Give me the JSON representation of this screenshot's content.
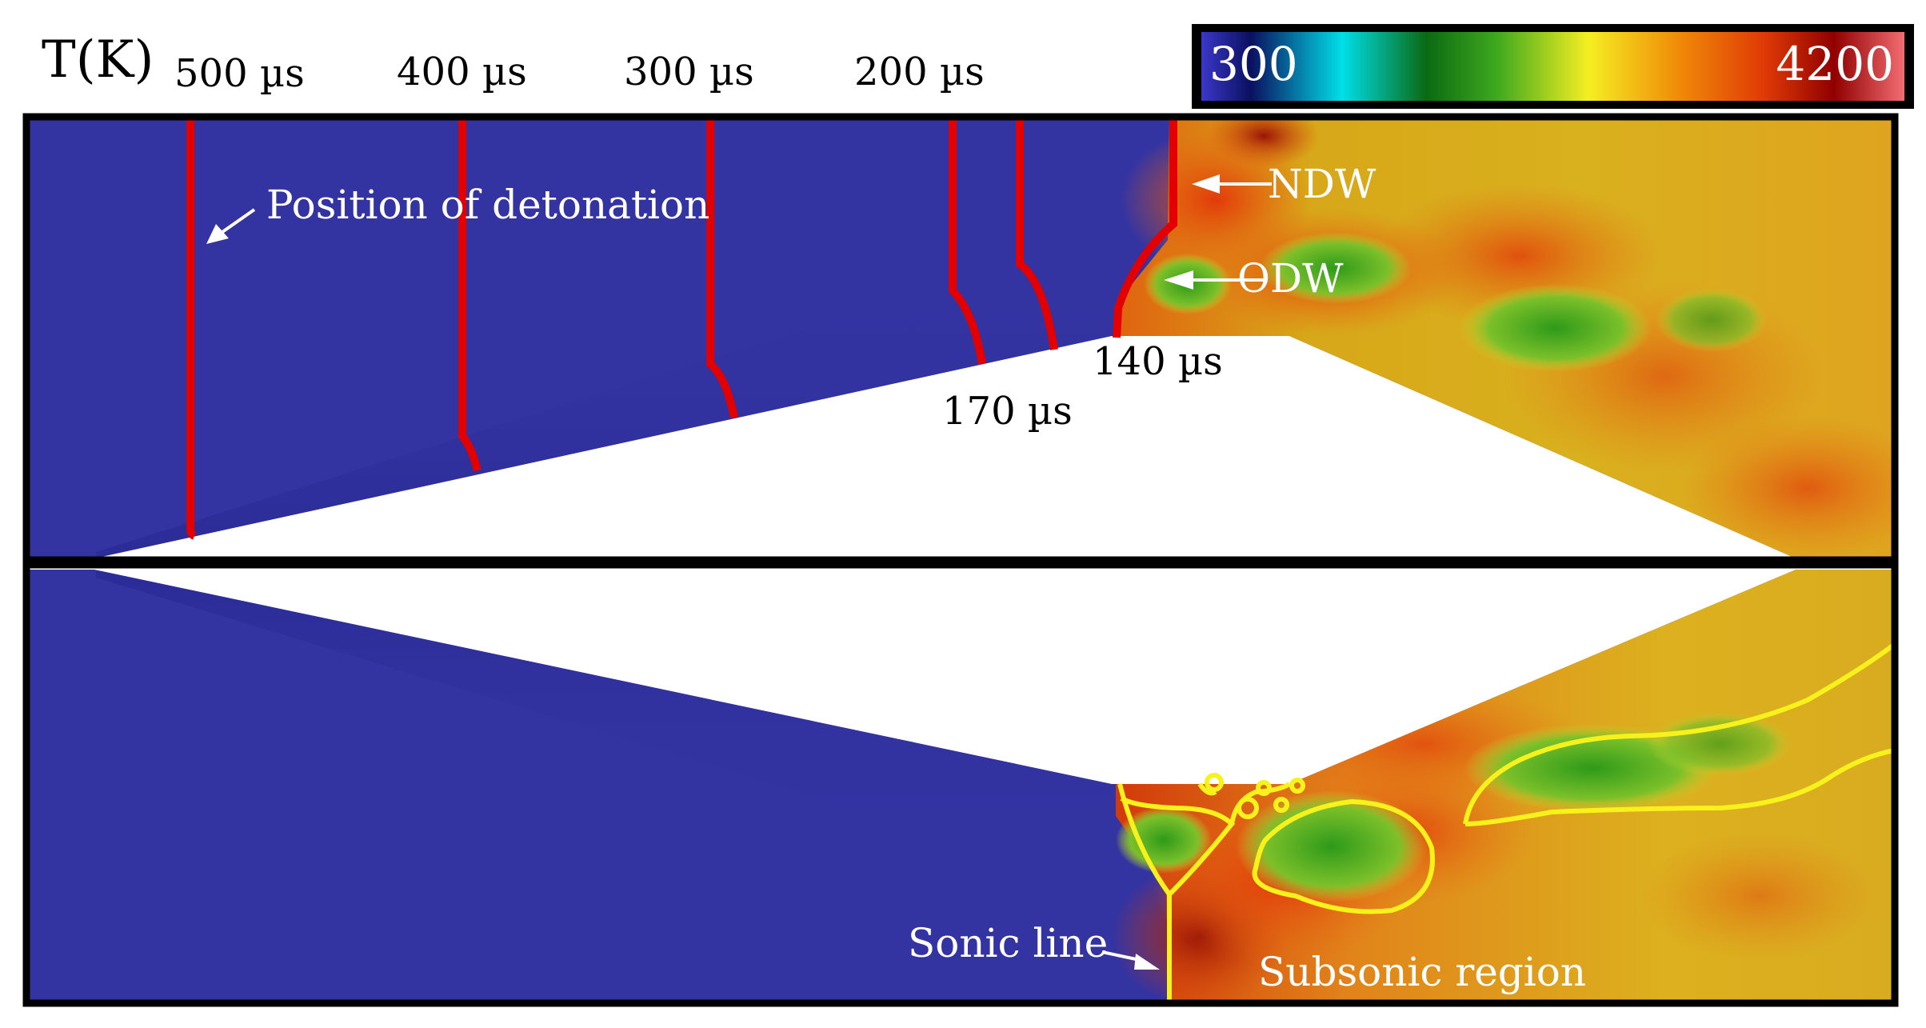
{
  "header": {
    "quantity_label": "T(K)",
    "time_labels": [
      "500 µs",
      "400 µs",
      "300 µs",
      "200 µs"
    ]
  },
  "colorbar": {
    "min_label": "300",
    "max_label": "4200",
    "colors": [
      "#3b37c8",
      "#0a1060",
      "#00dfe8",
      "#0a6a12",
      "#3ea81e",
      "#f4ef22",
      "#f08a08",
      "#e03a06",
      "#900000",
      "#f36d72"
    ]
  },
  "top_panel": {
    "annotations": {
      "position_of_detonation": "Position of detonation",
      "ndw": "NDW",
      "odw": "ODW",
      "t140": "140 µs",
      "t170": "170 µs"
    }
  },
  "bottom_panel": {
    "annotations": {
      "sonic_line": "Sonic line",
      "subsonic_region": "Subsonic region"
    }
  },
  "colors": {
    "unburned": "#3333a2",
    "front": "#e20000",
    "sonic": "#f7f21c",
    "frame": "#000000"
  }
}
